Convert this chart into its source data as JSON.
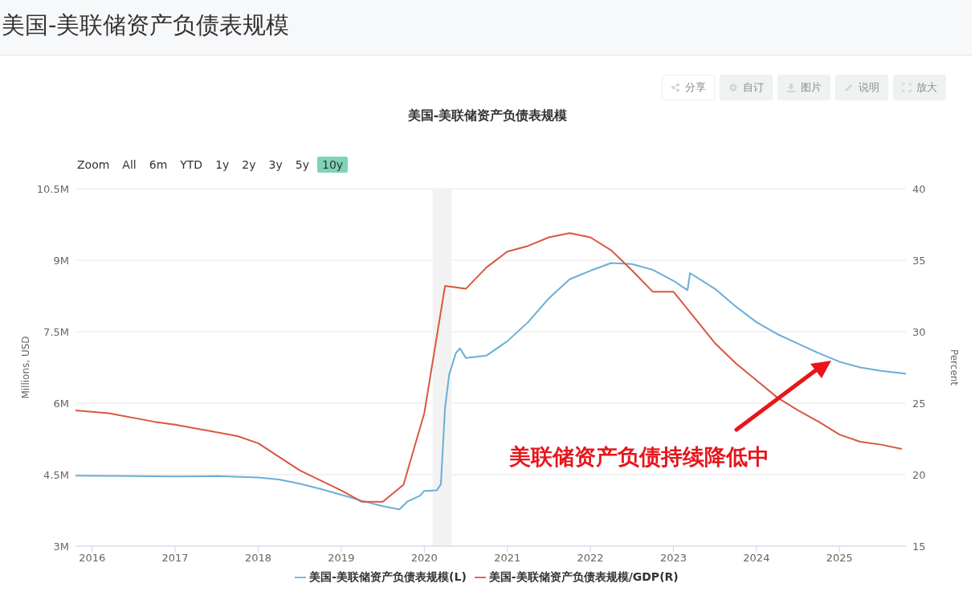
{
  "chart_data": {
    "type": "line",
    "title": "美国-美联储资产负债表规模",
    "ylabel": "Millions, USD",
    "y2label": "Percent",
    "annotations": [
      "美国-美联储资产负债表规模",
      "美联储资产负债持续降低中",
      "Zoom",
      "All",
      "6m",
      "YTD",
      "1y",
      "2y",
      "3y",
      "5y",
      "10y",
      "分享",
      "自订",
      "图片",
      "说明",
      "放大"
    ],
    "xlim": [
      2015.8,
      2025.8
    ],
    "xticks": [
      2016,
      2017,
      2018,
      2019,
      2020,
      2021,
      2022,
      2023,
      2024,
      2025
    ],
    "ylim": [
      3,
      10.5
    ],
    "yticks": [
      {
        "value": 3,
        "label": "3M"
      },
      {
        "value": 4.5,
        "label": "4.5M"
      },
      {
        "value": 6,
        "label": "6M"
      },
      {
        "value": 7.5,
        "label": "7.5M"
      },
      {
        "value": 9,
        "label": "9M"
      },
      {
        "value": 10.5,
        "label": "10.5M"
      }
    ],
    "y2lim": [
      15,
      40
    ],
    "y2ticks": [
      15,
      20,
      25,
      30,
      35,
      40
    ],
    "grid": "y",
    "legend": "bottom",
    "marker": "none",
    "line_style": "solid",
    "bands": [
      {
        "axis": "x",
        "from": 2020.1,
        "to": 2020.33,
        "color": "#f2f2f2"
      }
    ],
    "series": [
      {
        "name": "美国-美联储资产负债表规模(L)",
        "color": "#6aaed6",
        "x": [
          2015.8,
          2016.5,
          2017.0,
          2017.5,
          2018.0,
          2018.25,
          2018.5,
          2018.75,
          2019.0,
          2019.25,
          2019.5,
          2019.7,
          2019.8,
          2019.95,
          2020.0,
          2020.15,
          2020.2,
          2020.25,
          2020.3,
          2020.38,
          2020.43,
          2020.5,
          2020.75,
          2021.0,
          2021.25,
          2021.5,
          2021.75,
          2022.0,
          2022.25,
          2022.5,
          2022.75,
          2023.0,
          2023.17,
          2023.2,
          2023.5,
          2023.75,
          2024.0,
          2024.25,
          2024.5,
          2024.75,
          2025.0,
          2025.25,
          2025.5,
          2025.8
        ],
        "values": [
          4.48,
          4.47,
          4.46,
          4.47,
          4.44,
          4.4,
          4.31,
          4.2,
          4.08,
          3.95,
          3.84,
          3.77,
          3.94,
          4.06,
          4.16,
          4.17,
          4.3,
          5.9,
          6.6,
          7.05,
          7.15,
          6.95,
          7.0,
          7.3,
          7.7,
          8.2,
          8.6,
          8.78,
          8.94,
          8.92,
          8.8,
          8.57,
          8.37,
          8.73,
          8.4,
          8.03,
          7.7,
          7.45,
          7.25,
          7.05,
          6.87,
          6.75,
          6.68,
          6.62
        ]
      },
      {
        "name": "美国-美联储资产负债表规模/GDP(R)",
        "color": "#d9573e",
        "axis": "y2",
        "x": [
          2015.8,
          2016.2,
          2016.75,
          2017.0,
          2017.75,
          2018.0,
          2018.5,
          2019.0,
          2019.25,
          2019.5,
          2019.75,
          2020.0,
          2020.25,
          2020.5,
          2020.75,
          2021.0,
          2021.25,
          2021.5,
          2021.75,
          2022.0,
          2022.25,
          2022.5,
          2022.75,
          2023.0,
          2023.25,
          2023.5,
          2023.75,
          2024.0,
          2024.25,
          2024.5,
          2024.75,
          2025.0,
          2025.25,
          2025.5,
          2025.75
        ],
        "values": [
          24.5,
          24.3,
          23.7,
          23.5,
          22.7,
          22.2,
          20.3,
          18.9,
          18.1,
          18.1,
          19.3,
          24.3,
          33.2,
          33.0,
          34.5,
          35.6,
          36.0,
          36.6,
          36.9,
          36.6,
          35.7,
          34.3,
          32.8,
          32.8,
          31.0,
          29.2,
          27.8,
          26.6,
          25.4,
          24.5,
          23.7,
          22.8,
          22.3,
          22.1,
          21.8
        ]
      }
    ]
  }
}
